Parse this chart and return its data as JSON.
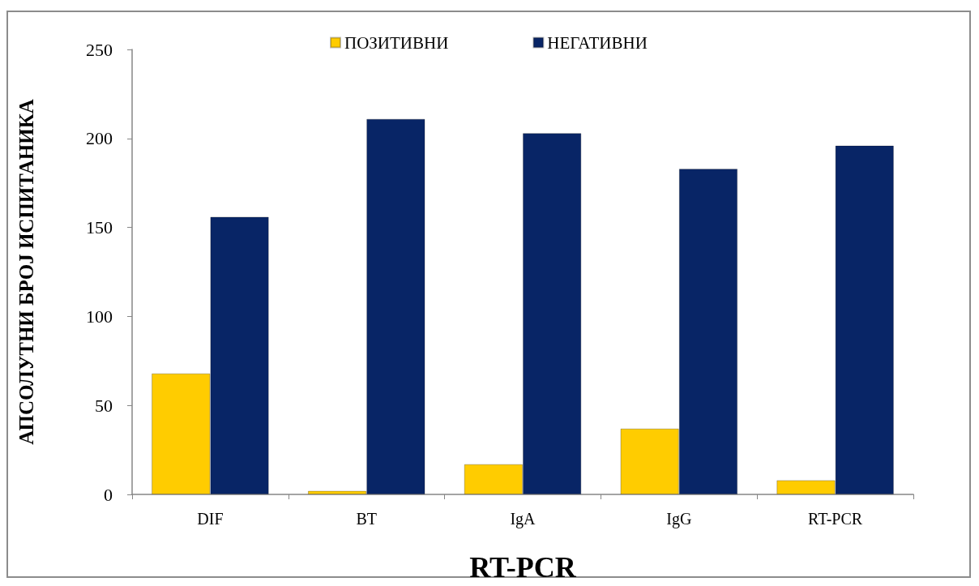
{
  "chart_data": {
    "type": "bar",
    "xlabel": "RT-PCR",
    "ylabel": "АПСОЛУТНИ БРОЈ ИСПИТАНИКА",
    "categories": [
      "DIF",
      "BT",
      "IgA",
      "IgG",
      "RT-PCR"
    ],
    "series": [
      {
        "name": "ПОЗИТИВНИ",
        "color": "#ffcc00",
        "values": [
          68,
          2,
          17,
          37,
          8
        ]
      },
      {
        "name": "НЕГАТИВНИ",
        "color": "#082566",
        "values": [
          156,
          211,
          203,
          183,
          196
        ]
      }
    ],
    "ylim": [
      0,
      250
    ],
    "yticks": [
      0,
      50,
      100,
      150,
      200,
      250
    ],
    "grid": false,
    "legend": "top"
  }
}
